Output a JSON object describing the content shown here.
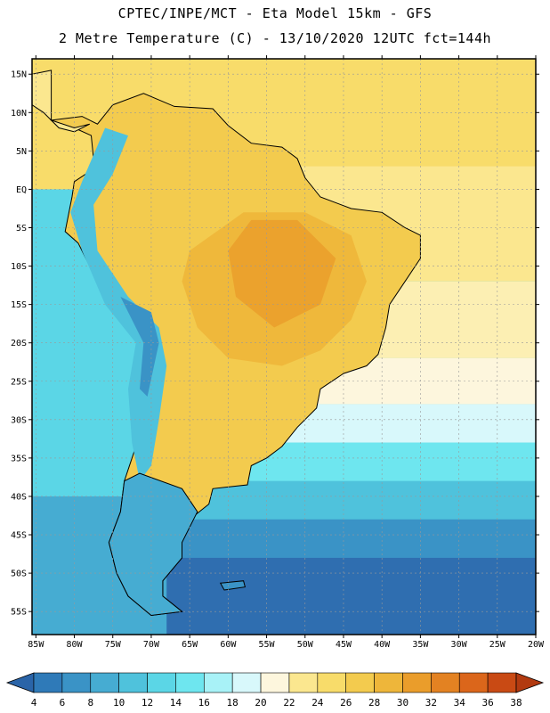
{
  "header": {
    "line1": "CPTEC/INPE/MCT -  Eta Model 15km - GFS",
    "line2": "2 Metre Temperature (C) - 13/10/2020 12UTC fct=144h"
  },
  "axes": {
    "lat_labels": [
      "15N",
      "10N",
      "5N",
      "EQ",
      "5S",
      "10S",
      "15S",
      "20S",
      "25S",
      "30S",
      "35S",
      "40S",
      "45S",
      "50S",
      "55S"
    ],
    "lat_values": [
      15,
      10,
      5,
      0,
      -5,
      -10,
      -15,
      -20,
      -25,
      -30,
      -35,
      -40,
      -45,
      -50,
      -55
    ],
    "lon_labels": [
      "85W",
      "80W",
      "75W",
      "70W",
      "65W",
      "60W",
      "55W",
      "50W",
      "45W",
      "40W",
      "35W",
      "30W",
      "25W",
      "20W"
    ],
    "lon_values": [
      -85,
      -80,
      -75,
      -70,
      -65,
      -60,
      -55,
      -50,
      -45,
      -40,
      -35,
      -30,
      -25,
      -20
    ],
    "lat_range": [
      -58,
      17
    ],
    "lon_range": [
      -85.5,
      -20
    ]
  },
  "colorbar": {
    "labels": [
      "4",
      "6",
      "8",
      "10",
      "12",
      "14",
      "16",
      "18",
      "20",
      "22",
      "24",
      "26",
      "28",
      "30",
      "32",
      "34",
      "36",
      "38"
    ],
    "colors": [
      "#2a64a8",
      "#2f7ab8",
      "#3a93c6",
      "#46acd2",
      "#4fc2dc",
      "#5bd6e6",
      "#6ee6ef",
      "#a8f2f7",
      "#d8f8fb",
      "#fdf6dd",
      "#fbe78f",
      "#f8dc6a",
      "#f3cb4e",
      "#eeb63a",
      "#ea9d2b",
      "#e38222",
      "#db661b",
      "#c94a14",
      "#b23a10"
    ]
  },
  "map": {
    "ocean_bands": [
      {
        "lat_top": 17,
        "lat_bottom": 3,
        "color": "#f8dc6a"
      },
      {
        "lat_top": 3,
        "lat_bottom": -12,
        "color": "#fbe78f"
      },
      {
        "lat_top": -12,
        "lat_bottom": -22,
        "color": "#fcefb3"
      },
      {
        "lat_top": -22,
        "lat_bottom": -28,
        "color": "#fdf6dd"
      },
      {
        "lat_top": -28,
        "lat_bottom": -33,
        "color": "#d8f8fb"
      },
      {
        "lat_top": -33,
        "lat_bottom": -38,
        "color": "#6ee6ef"
      },
      {
        "lat_top": -38,
        "lat_bottom": -43,
        "color": "#4fc2dc"
      },
      {
        "lat_top": -43,
        "lat_bottom": -48,
        "color": "#3a93c6"
      },
      {
        "lat_top": -48,
        "lat_bottom": -58,
        "color": "#2f6eb0"
      }
    ],
    "pacific_color": "#5bd6e6",
    "pacific_south_color": "#46acd2",
    "land_base_color": "#f3cb4e",
    "land_hot_color": "#eeb63a",
    "land_hottest_color": "#ea9d2b",
    "andes_color": "#4fc2dc",
    "andes_cold_color": "#3a93c6",
    "patagonia_color": "#46acd2",
    "grid_color": "#999999"
  }
}
